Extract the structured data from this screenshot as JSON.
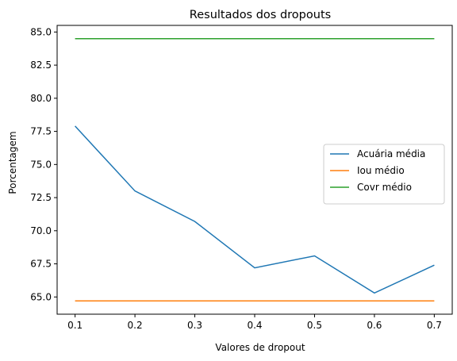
{
  "chart_data": {
    "type": "line",
    "title": "Resultados dos dropouts",
    "xlabel": "Valores de dropout",
    "ylabel": "Porcentagem",
    "x": [
      0.1,
      0.2,
      0.3,
      0.4,
      0.5,
      0.6,
      0.7
    ],
    "xticks": [
      "0.1",
      "0.2",
      "0.3",
      "0.4",
      "0.5",
      "0.6",
      "0.7"
    ],
    "yticks": [
      "65.0",
      "67.5",
      "70.0",
      "72.5",
      "75.0",
      "77.5",
      "80.0",
      "82.5",
      "85.0"
    ],
    "xlim": [
      0.07,
      0.73
    ],
    "ylim": [
      63.7,
      85.5
    ],
    "grid": false,
    "legend_position": "center-right",
    "series": [
      {
        "name": "Acuária média",
        "color": "#1f77b4",
        "values": [
          77.9,
          73.0,
          70.7,
          67.2,
          68.1,
          65.3,
          67.4
        ]
      },
      {
        "name": "Iou médio",
        "color": "#ff7f0e",
        "values": [
          64.7,
          64.7,
          64.7,
          64.7,
          64.7,
          64.7,
          64.7
        ]
      },
      {
        "name": "Covr médio",
        "color": "#2ca02c",
        "values": [
          84.5,
          84.5,
          84.5,
          84.5,
          84.5,
          84.5,
          84.5
        ]
      }
    ]
  }
}
